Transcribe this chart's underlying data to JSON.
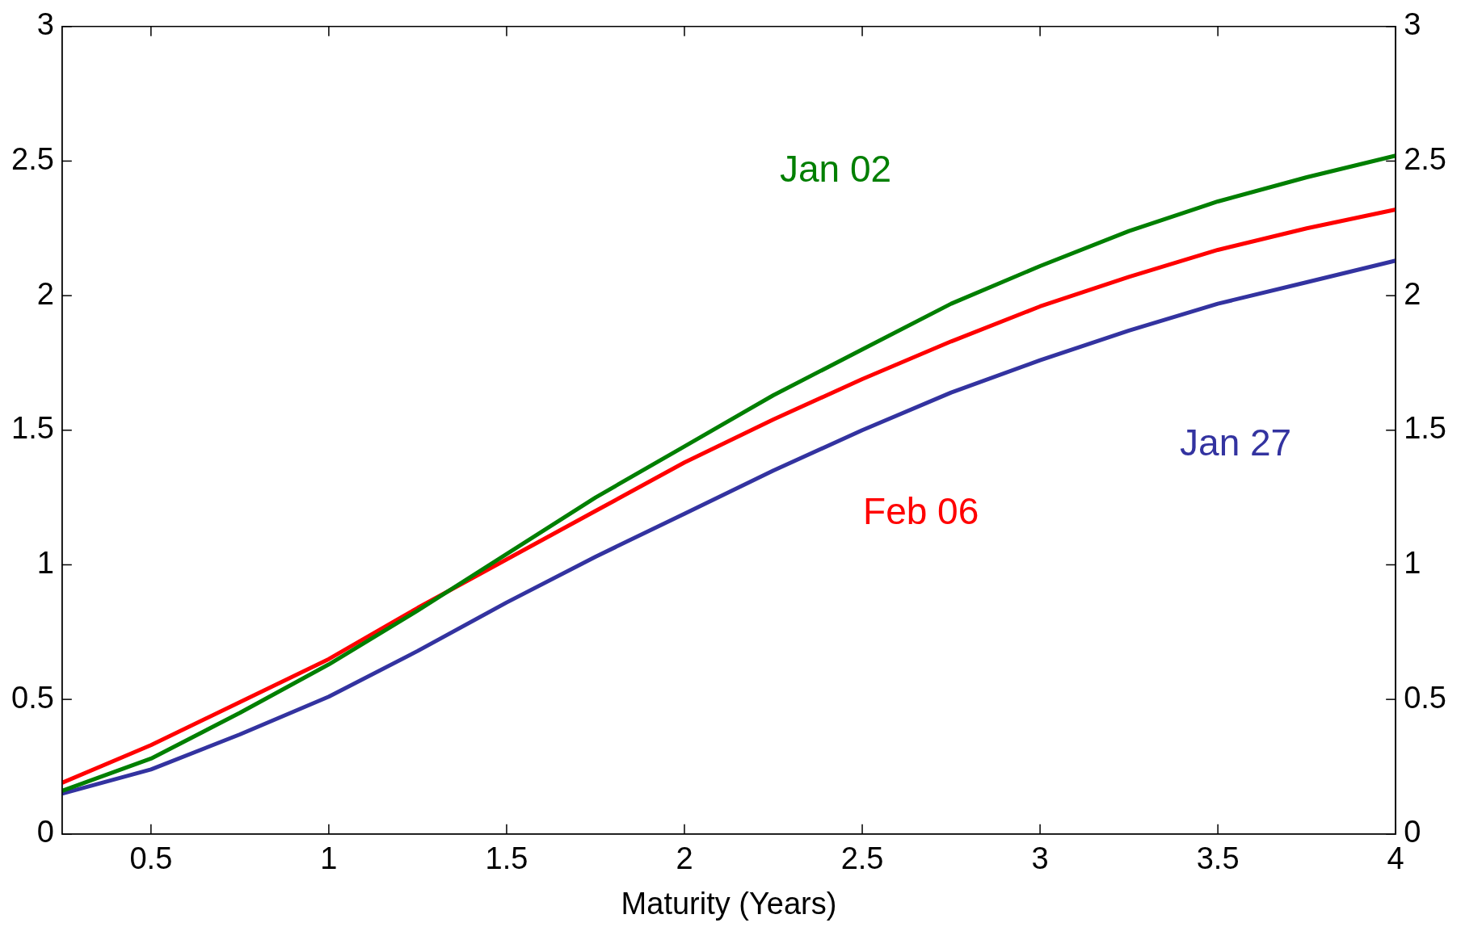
{
  "chart_data": {
    "type": "line",
    "xlabel": "Maturity (Years)",
    "x": [
      0.25,
      0.5,
      0.75,
      1,
      1.25,
      1.5,
      1.75,
      2,
      2.25,
      2.5,
      2.75,
      3,
      3.25,
      3.5,
      3.75,
      4
    ],
    "series": [
      {
        "name": "Jan 02",
        "color": "#007f00",
        "values": [
          0.16,
          0.28,
          0.45,
          0.63,
          0.83,
          1.04,
          1.25,
          1.44,
          1.63,
          1.8,
          1.97,
          2.11,
          2.24,
          2.35,
          2.44,
          2.52
        ]
      },
      {
        "name": "Feb 06",
        "color": "#ff0000",
        "values": [
          0.19,
          0.33,
          0.49,
          0.65,
          0.84,
          1.02,
          1.2,
          1.38,
          1.54,
          1.69,
          1.83,
          1.96,
          2.07,
          2.17,
          2.25,
          2.32
        ]
      },
      {
        "name": "Jan 27",
        "color": "#3333a0",
        "values": [
          0.15,
          0.24,
          0.37,
          0.51,
          0.68,
          0.86,
          1.03,
          1.19,
          1.35,
          1.5,
          1.64,
          1.76,
          1.87,
          1.97,
          2.05,
          2.13
        ]
      }
    ],
    "xlim": [
      0.25,
      4
    ],
    "xticks": [
      0.5,
      1,
      1.5,
      2,
      2.5,
      3,
      3.5,
      4
    ],
    "ylim": [
      0,
      3
    ],
    "yticks": [
      0,
      0.5,
      1,
      1.5,
      2,
      2.5,
      3
    ],
    "y2lim": [
      0,
      3
    ],
    "y2ticks": [
      0,
      0.5,
      1,
      1.5,
      2,
      2.5,
      3
    ],
    "grid": false,
    "legend": false,
    "marker": "none",
    "line_style": "solid"
  }
}
